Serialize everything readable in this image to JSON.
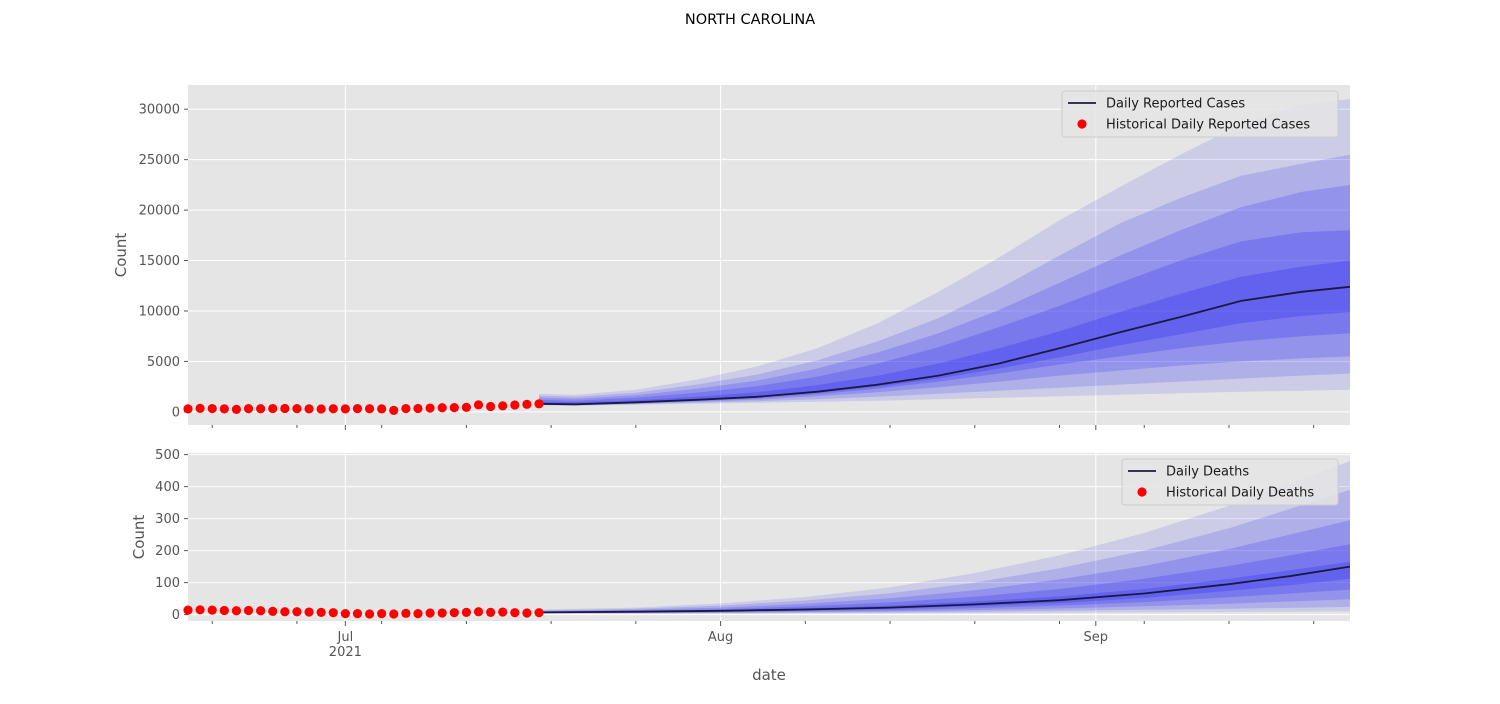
{
  "figure": {
    "title": "NORTH CAROLINA",
    "colors": {
      "panel_bg": "#e5e5e5",
      "grid": "#ffffff",
      "band": "#2a2af5",
      "median": "#1a1a40",
      "historical": "#ff0000",
      "text": "#555555"
    }
  },
  "chart_data": [
    {
      "type": "line",
      "ylabel": "Count",
      "ylim": [
        -1300,
        32400
      ],
      "yticks": [
        0,
        5000,
        10000,
        15000,
        20000,
        25000,
        30000
      ],
      "ytick_labels": [
        "0",
        "5000",
        "10000",
        "15000",
        "20000",
        "25000",
        "30000"
      ],
      "xlim": [
        "2021-06-18",
        "2021-09-22"
      ],
      "grid": true,
      "legend": {
        "placement": "top-right",
        "entries": [
          {
            "label": "Daily Reported Cases",
            "kind": "line"
          },
          {
            "label": "Historical Daily Reported Cases",
            "kind": "marker"
          }
        ]
      },
      "series": [
        {
          "name": "Daily Reported Cases",
          "kind": "forecast",
          "x": [
            "2021-07-17",
            "2021-07-20",
            "2021-07-25",
            "2021-07-30",
            "2021-08-04",
            "2021-08-09",
            "2021-08-14",
            "2021-08-19",
            "2021-08-24",
            "2021-08-29",
            "2021-09-03",
            "2021-09-08",
            "2021-09-13",
            "2021-09-18",
            "2021-09-22"
          ],
          "median": [
            800,
            750,
            950,
            1200,
            1500,
            2000,
            2700,
            3600,
            4800,
            6300,
            7900,
            9400,
            11000,
            11900,
            12400
          ],
          "bands": [
            {
              "lower": [
                650,
                600,
                700,
                800,
                900,
                1000,
                1100,
                1250,
                1400,
                1550,
                1700,
                1850,
                2000,
                2100,
                2200
              ],
              "upper": [
                1800,
                1700,
                2200,
                3200,
                4500,
                6300,
                8800,
                11900,
                15300,
                19000,
                22300,
                25500,
                28500,
                30500,
                31000
              ]
            },
            {
              "lower": [
                680,
                630,
                760,
                900,
                1050,
                1250,
                1500,
                1800,
                2100,
                2400,
                2700,
                3000,
                3300,
                3600,
                3800
              ],
              "upper": [
                1600,
                1500,
                1900,
                2700,
                3700,
                5100,
                7000,
                9300,
                12200,
                15500,
                18700,
                21200,
                23400,
                24600,
                25500
              ]
            },
            {
              "lower": [
                700,
                660,
                820,
                1000,
                1200,
                1550,
                1950,
                2450,
                3000,
                3600,
                4100,
                4600,
                5000,
                5300,
                5500
              ],
              "upper": [
                1400,
                1300,
                1650,
                2300,
                3100,
                4300,
                5900,
                7800,
                10100,
                12800,
                15500,
                18000,
                20300,
                21800,
                22500
              ]
            },
            {
              "lower": [
                720,
                680,
                860,
                1080,
                1330,
                1750,
                2300,
                3000,
                3800,
                4700,
                5500,
                6300,
                7000,
                7500,
                7800
              ],
              "upper": [
                1200,
                1100,
                1420,
                1900,
                2550,
                3500,
                4800,
                6400,
                8400,
                10500,
                12800,
                15000,
                16900,
                17800,
                18000
              ]
            },
            {
              "lower": [
                750,
                700,
                900,
                1140,
                1420,
                1880,
                2500,
                3300,
                4300,
                5400,
                6600,
                7700,
                8800,
                9500,
                9900
              ],
              "upper": [
                1000,
                950,
                1150,
                1500,
                1950,
                2650,
                3600,
                4800,
                6300,
                8000,
                9900,
                11700,
                13400,
                14400,
                15000
              ]
            }
          ]
        },
        {
          "name": "Historical Daily Reported Cases",
          "kind": "scatter",
          "x": [
            "2021-06-18",
            "2021-06-19",
            "2021-06-20",
            "2021-06-21",
            "2021-06-22",
            "2021-06-23",
            "2021-06-24",
            "2021-06-25",
            "2021-06-26",
            "2021-06-27",
            "2021-06-28",
            "2021-06-29",
            "2021-06-30",
            "2021-07-01",
            "2021-07-02",
            "2021-07-03",
            "2021-07-04",
            "2021-07-05",
            "2021-07-06",
            "2021-07-07",
            "2021-07-08",
            "2021-07-09",
            "2021-07-10",
            "2021-07-11",
            "2021-07-12",
            "2021-07-13",
            "2021-07-14",
            "2021-07-15",
            "2021-07-16",
            "2021-07-17"
          ],
          "values": [
            300,
            350,
            330,
            300,
            250,
            320,
            310,
            330,
            340,
            320,
            300,
            290,
            310,
            300,
            320,
            310,
            300,
            150,
            330,
            340,
            380,
            410,
            420,
            450,
            700,
            530,
            600,
            680,
            750,
            800
          ]
        }
      ]
    },
    {
      "type": "line",
      "ylabel": "Count",
      "ylim": [
        -20,
        505
      ],
      "yticks": [
        0,
        100,
        200,
        300,
        400,
        500
      ],
      "ytick_labels": [
        "0",
        "100",
        "200",
        "300",
        "400",
        "500"
      ],
      "xlim": [
        "2021-06-18",
        "2021-09-22"
      ],
      "xlabel": "date",
      "xticks": [
        {
          "date": "2021-07-01",
          "label": "Jul",
          "sublabel": "2021"
        },
        {
          "date": "2021-08-01",
          "label": "Aug",
          "sublabel": ""
        },
        {
          "date": "2021-09-01",
          "label": "Sep",
          "sublabel": ""
        }
      ],
      "grid": true,
      "legend": {
        "placement": "top-right",
        "entries": [
          {
            "label": "Daily Deaths",
            "kind": "line"
          },
          {
            "label": "Historical Daily Deaths",
            "kind": "marker"
          }
        ]
      },
      "series": [
        {
          "name": "Daily Deaths",
          "kind": "forecast",
          "x": [
            "2021-07-17",
            "2021-07-25",
            "2021-08-01",
            "2021-08-08",
            "2021-08-15",
            "2021-08-22",
            "2021-08-29",
            "2021-09-05",
            "2021-09-12",
            "2021-09-17",
            "2021-09-22"
          ],
          "median": [
            7,
            9,
            12,
            16,
            22,
            32,
            45,
            66,
            95,
            120,
            150
          ],
          "bands": [
            {
              "lower": [
                3,
                3,
                3,
                4,
                4,
                5,
                6,
                7,
                8,
                9,
                10
              ],
              "upper": [
                16,
                22,
                35,
                55,
                85,
                130,
                185,
                255,
                340,
                410,
                480
              ]
            },
            {
              "lower": [
                4,
                4,
                5,
                6,
                7,
                9,
                12,
                15,
                18,
                21,
                24
              ],
              "upper": [
                13,
                18,
                28,
                44,
                67,
                100,
                145,
                200,
                270,
                330,
                390
              ]
            },
            {
              "lower": [
                5,
                5,
                6,
                8,
                10,
                14,
                19,
                26,
                34,
                41,
                48
              ],
              "upper": [
                11,
                15,
                22,
                34,
                51,
                76,
                110,
                152,
                205,
                250,
                295
              ]
            },
            {
              "lower": [
                5,
                6,
                8,
                11,
                14,
                20,
                28,
                39,
                54,
                66,
                78
              ],
              "upper": [
                9,
                12,
                17,
                26,
                38,
                56,
                80,
                112,
                152,
                185,
                220
              ]
            },
            {
              "lower": [
                6,
                7,
                10,
                13,
                18,
                26,
                36,
                52,
                74,
                92,
                112
              ],
              "upper": [
                8,
                10,
                14,
                20,
                28,
                41,
                57,
                80,
                112,
                138,
                165
              ]
            }
          ]
        },
        {
          "name": "Historical Daily Deaths",
          "kind": "scatter",
          "x": [
            "2021-06-18",
            "2021-06-19",
            "2021-06-20",
            "2021-06-21",
            "2021-06-22",
            "2021-06-23",
            "2021-06-24",
            "2021-06-25",
            "2021-06-26",
            "2021-06-27",
            "2021-06-28",
            "2021-06-29",
            "2021-06-30",
            "2021-07-01",
            "2021-07-02",
            "2021-07-03",
            "2021-07-04",
            "2021-07-05",
            "2021-07-06",
            "2021-07-07",
            "2021-07-08",
            "2021-07-09",
            "2021-07-10",
            "2021-07-11",
            "2021-07-12",
            "2021-07-13",
            "2021-07-14",
            "2021-07-15",
            "2021-07-16",
            "2021-07-17"
          ],
          "values": [
            14,
            15,
            14,
            13,
            12,
            13,
            12,
            10,
            9,
            9,
            8,
            7,
            6,
            3,
            3,
            2,
            3,
            2,
            4,
            3,
            5,
            5,
            6,
            7,
            9,
            7,
            8,
            6,
            5,
            6
          ]
        }
      ]
    }
  ]
}
